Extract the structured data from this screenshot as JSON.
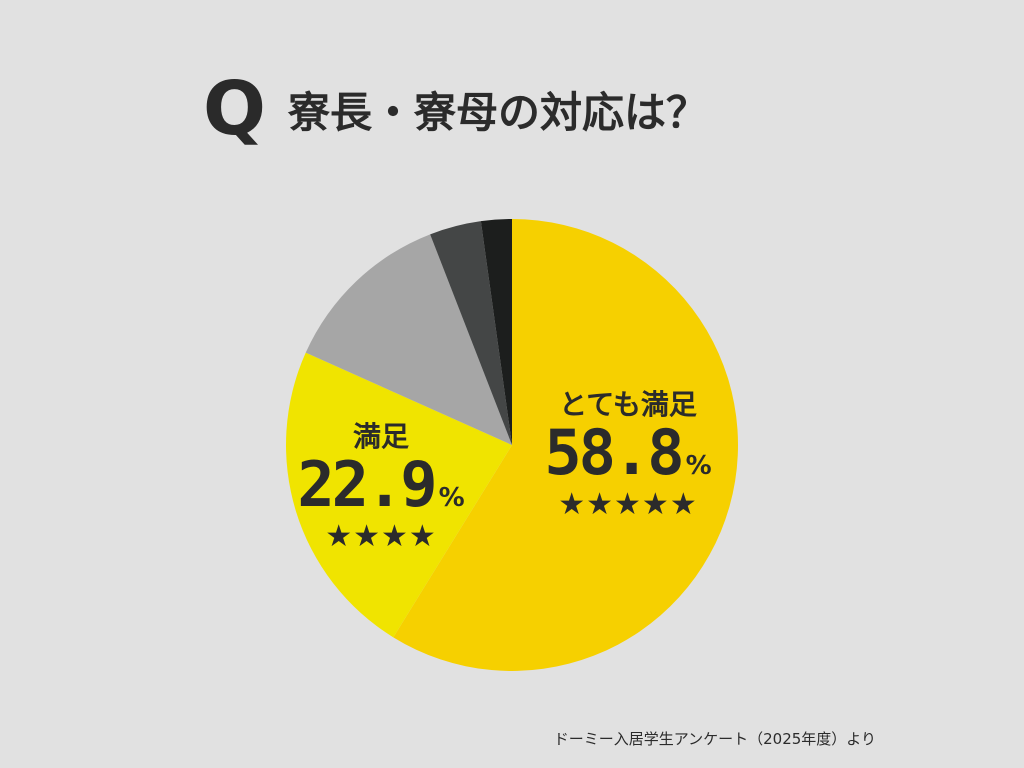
{
  "question_mark": "Q",
  "question": "寮長・寮母の対応は？",
  "source": "ドーミー入居学生アンケート（2025年度）より",
  "chart_data": {
    "type": "pie",
    "title": "寮長・寮母の対応は？",
    "start": "12 o'clock, clockwise",
    "slices": [
      {
        "label": "とても満足",
        "value": 58.8,
        "color": "#f6d000",
        "display_value": "58.8",
        "unit": "%",
        "stars": "★★★★★"
      },
      {
        "label": "満足",
        "value": 22.9,
        "color": "#f0e400",
        "display_value": "22.9",
        "unit": "%",
        "stars": "★★★★"
      },
      {
        "label": "",
        "value": 12.4,
        "color": "#a6a6a6"
      },
      {
        "label": "",
        "value": 3.7,
        "color": "#444646"
      },
      {
        "label": "",
        "value": 2.2,
        "color": "#1c1e1d"
      }
    ]
  }
}
